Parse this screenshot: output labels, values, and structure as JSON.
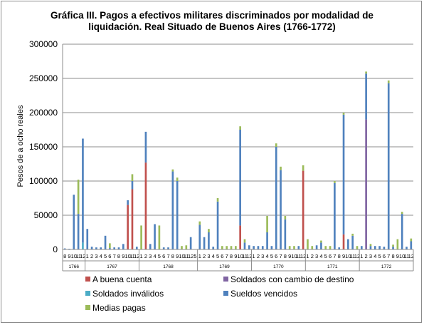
{
  "chart_data": {
    "type": "bar",
    "stacked": true,
    "title_line1": "Gráfica III. Pagos a efectivos  militares discriminados por modalidad de",
    "title_line2": "liquidación. Real Situado de Buenos Aires (1766-1772)",
    "ylabel": "Pesos de a ocho reales",
    "ylim": [
      0,
      300000
    ],
    "yticks": [
      0,
      50000,
      100000,
      150000,
      200000,
      250000,
      300000
    ],
    "grid": true,
    "legend_position": "bottom",
    "series": [
      {
        "name": "A buena cuenta",
        "color": "#c0504d"
      },
      {
        "name": "Soldados con cambio de destino",
        "color": "#8064a2"
      },
      {
        "name": "Soldados inválidos",
        "color": "#4bacc6"
      },
      {
        "name": "Sueldos vencidos",
        "color": "#4f81bd"
      },
      {
        "name": "Medias pagas",
        "color": "#9bbb59"
      }
    ],
    "legend_order": [
      0,
      1,
      2,
      3,
      4
    ],
    "year_groups": [
      {
        "year": "1766",
        "months": [
          "8",
          "9",
          "10",
          "11",
          "12"
        ],
        "stacks": [
          [
            0,
            0,
            0,
            1500,
            0
          ],
          [
            0,
            0,
            0,
            1000,
            0
          ],
          [
            0,
            0,
            0,
            80000,
            0
          ],
          [
            0,
            0,
            0,
            52000,
            50000
          ],
          [
            0,
            0,
            10000,
            152000,
            0
          ]
        ]
      },
      {
        "year": "1767",
        "months": [
          "1",
          "2",
          "3",
          "4",
          "5",
          "6",
          "7",
          "8",
          "9",
          "10",
          "11",
          "12"
        ],
        "stacks": [
          [
            0,
            0,
            0,
            30000,
            0
          ],
          [
            0,
            0,
            0,
            4000,
            0
          ],
          [
            0,
            0,
            0,
            3000,
            0
          ],
          [
            0,
            0,
            0,
            3000,
            0
          ],
          [
            0,
            0,
            0,
            20000,
            0
          ],
          [
            0,
            0,
            0,
            2000,
            7000
          ],
          [
            0,
            0,
            0,
            3000,
            0
          ],
          [
            0,
            0,
            0,
            3000,
            0
          ],
          [
            0,
            0,
            0,
            8000,
            0
          ],
          [
            65000,
            0,
            0,
            7000,
            0
          ],
          [
            88000,
            0,
            0,
            12000,
            10000
          ],
          [
            0,
            0,
            0,
            4000,
            0
          ]
        ]
      },
      {
        "year": "1768",
        "months": [
          "1",
          "2",
          "3",
          "4",
          "5",
          "6",
          "7",
          "8",
          "9",
          "10",
          "11",
          "12",
          "5"
        ],
        "stacks": [
          [
            0,
            0,
            0,
            0,
            35000
          ],
          [
            127000,
            0,
            0,
            45000,
            0
          ],
          [
            0,
            0,
            0,
            8000,
            0
          ],
          [
            0,
            0,
            0,
            37000,
            0
          ],
          [
            0,
            0,
            0,
            0,
            35000
          ],
          [
            0,
            0,
            0,
            3000,
            0
          ],
          [
            0,
            0,
            0,
            3000,
            0
          ],
          [
            0,
            0,
            0,
            114000,
            3000
          ],
          [
            0,
            0,
            0,
            100000,
            5000
          ],
          [
            0,
            0,
            0,
            0,
            5000
          ],
          [
            0,
            0,
            0,
            0,
            6000
          ],
          [
            0,
            0,
            0,
            18000,
            0
          ],
          [
            0,
            0,
            0,
            0,
            0
          ]
        ]
      },
      {
        "year": "1769",
        "months": [
          "1",
          "2",
          "3",
          "4",
          "5",
          "6",
          "7",
          "8",
          "9",
          "10",
          "11",
          "12"
        ],
        "stacks": [
          [
            0,
            0,
            0,
            36000,
            5000
          ],
          [
            0,
            0,
            0,
            18000,
            0
          ],
          [
            0,
            0,
            0,
            25000,
            5000
          ],
          [
            0,
            0,
            0,
            4000,
            0
          ],
          [
            0,
            0,
            0,
            70000,
            5000
          ],
          [
            0,
            0,
            0,
            0,
            5000
          ],
          [
            0,
            0,
            0,
            0,
            5000
          ],
          [
            0,
            0,
            0,
            0,
            5000
          ],
          [
            0,
            0,
            0,
            0,
            5000
          ],
          [
            35000,
            0,
            0,
            140000,
            5000
          ],
          [
            0,
            0,
            0,
            10000,
            5000
          ],
          [
            0,
            0,
            0,
            6000,
            0
          ]
        ]
      },
      {
        "year": "1770",
        "months": [
          "1",
          "2",
          "3",
          "4",
          "5",
          "6",
          "7",
          "8",
          "9",
          "10",
          "11",
          "12"
        ],
        "stacks": [
          [
            0,
            0,
            0,
            5000,
            0
          ],
          [
            0,
            0,
            0,
            5000,
            0
          ],
          [
            0,
            0,
            0,
            5000,
            0
          ],
          [
            0,
            0,
            0,
            25000,
            24000
          ],
          [
            0,
            0,
            0,
            5000,
            0
          ],
          [
            0,
            0,
            0,
            150000,
            5000
          ],
          [
            0,
            0,
            0,
            116000,
            5000
          ],
          [
            0,
            0,
            0,
            44000,
            5000
          ],
          [
            0,
            0,
            0,
            0,
            5000
          ],
          [
            0,
            0,
            0,
            0,
            5000
          ],
          [
            0,
            0,
            0,
            5000,
            0
          ],
          [
            115000,
            0,
            0,
            0,
            8000
          ]
        ]
      },
      {
        "year": "1771",
        "months": [
          "1",
          "2",
          "3",
          "4",
          "5",
          "6",
          "7",
          "8",
          "9",
          "10",
          "11",
          "12"
        ],
        "stacks": [
          [
            0,
            0,
            0,
            0,
            15000
          ],
          [
            0,
            0,
            0,
            0,
            5000
          ],
          [
            0,
            0,
            0,
            6000,
            0
          ],
          [
            0,
            0,
            0,
            10000,
            3000
          ],
          [
            0,
            0,
            0,
            0,
            5000
          ],
          [
            0,
            0,
            0,
            0,
            5000
          ],
          [
            0,
            0,
            0,
            97000,
            3000
          ],
          [
            0,
            0,
            0,
            3000,
            0
          ],
          [
            22000,
            0,
            0,
            175000,
            3000
          ],
          [
            0,
            0,
            0,
            15000,
            0
          ],
          [
            0,
            0,
            0,
            20000,
            3000
          ],
          [
            0,
            0,
            0,
            0,
            5000
          ]
        ]
      },
      {
        "year": "1772",
        "months": [
          "1",
          "2",
          "3",
          "4",
          "5",
          "6",
          "7",
          "8",
          "9",
          "10",
          "11",
          "12"
        ],
        "stacks": [
          [
            0,
            0,
            0,
            5000,
            0
          ],
          [
            0,
            190000,
            0,
            67000,
            3000
          ],
          [
            0,
            0,
            0,
            5000,
            3000
          ],
          [
            0,
            0,
            0,
            5000,
            0
          ],
          [
            0,
            0,
            0,
            5000,
            0
          ],
          [
            0,
            0,
            0,
            4000,
            0
          ],
          [
            0,
            0,
            0,
            243000,
            4000
          ],
          [
            0,
            0,
            0,
            4000,
            3000
          ],
          [
            0,
            0,
            0,
            0,
            15000
          ],
          [
            0,
            0,
            0,
            52000,
            3000
          ],
          [
            0,
            0,
            0,
            4000,
            0
          ],
          [
            0,
            0,
            0,
            12000,
            4000
          ]
        ]
      }
    ]
  }
}
